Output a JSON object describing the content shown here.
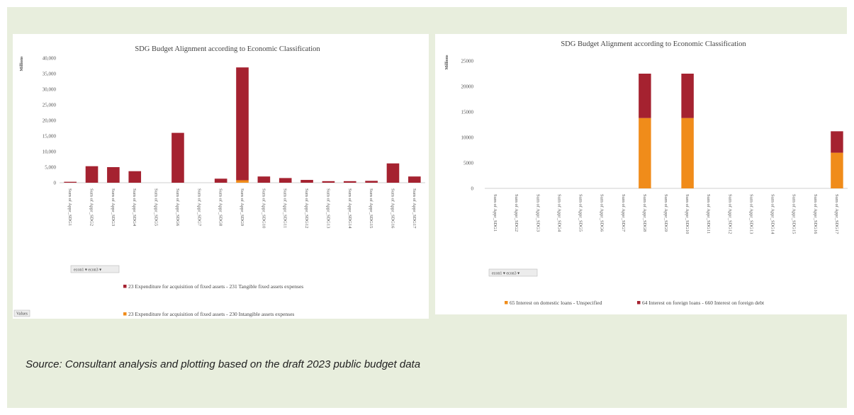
{
  "source_note": "Source: Consultant analysis and plotting based on the draft 2023 public budget data",
  "colors": {
    "dark_red": "#a52230",
    "orange": "#f08c1a",
    "frame_bg": "#e8eedd"
  },
  "chart_data": [
    {
      "type": "bar",
      "stacked": true,
      "title": "SDG Budget Alignment according to Economic Classification",
      "ylabel": "Millions",
      "ylim": [
        0,
        40000
      ],
      "yticks": [
        "0",
        "5,000",
        "10,000",
        "15,000",
        "20,000",
        "25,000",
        "30,000",
        "35,000",
        "40,000"
      ],
      "categories": [
        "Sum of Appr_SDG1",
        "Sum of Appr_SDG2",
        "Sum of Appr_SDG3",
        "Sum of Appr_SDG4",
        "Sum of Appr_SDG5",
        "Sum of Appr_SDG6",
        "Sum of Appr_SDG7",
        "Sum of Appr_SDG8",
        "Sum of Appr_SDG9",
        "Sum of Appr_SDG10",
        "Sum of Appr_SDG11",
        "Sum of Appr_SDG12",
        "Sum of Appr_SDG13",
        "Sum of Appr_SDG14",
        "Sum of Appr_SDG15",
        "Sum of Appr_SDG16",
        "Sum of Appr_SDG17"
      ],
      "series": [
        {
          "name": "23 Expenditure for acquisition of fixed assets - 230 Intangible assets expenses",
          "color": "#f08c1a",
          "values": [
            0,
            0,
            0,
            0,
            0,
            0,
            0,
            0,
            800,
            0,
            0,
            0,
            0,
            0,
            0,
            0,
            0
          ]
        },
        {
          "name": "23 Expenditure for acquisition of fixed assets - 231 Tangible fixed assets expenses",
          "color": "#a52230",
          "values": [
            300,
            5300,
            5000,
            3700,
            0,
            16000,
            0,
            1300,
            36200,
            2000,
            1500,
            900,
            500,
            500,
            600,
            6200,
            2000
          ]
        }
      ],
      "filter_label": "econ1 ▾ econ3 ▾",
      "values_label": "Values",
      "grid": false,
      "legend": "bottom"
    },
    {
      "type": "bar",
      "stacked": true,
      "title": "SDG Budget Alignment according to Economic Classification",
      "ylabel": "Millions",
      "ylim": [
        0,
        25000
      ],
      "yticks": [
        "0",
        "5000",
        "10000",
        "15000",
        "20000",
        "25000"
      ],
      "categories": [
        "Sum of Appr_SDG1",
        "Sum of Appr_SDG2",
        "Sum of Appr_SDG3",
        "Sum of Appr_SDG4",
        "Sum of Appr_SDG5",
        "Sum of Appr_SDG6",
        "Sum of Appr_SDG7",
        "Sum of Appr_SDG8",
        "Sum of Appr_SDG9",
        "Sum of Appr_SDG10",
        "Sum of Appr_SDG11",
        "Sum of Appr_SDG12",
        "Sum of Appr_SDG13",
        "Sum of Appr_SDG14",
        "Sum of Appr_SDG15",
        "Sum of Appr_SDG16",
        "Sum of Appr_SDG17"
      ],
      "series": [
        {
          "name": "65 Interest on domestic loans - Unspecified",
          "color": "#f08c1a",
          "values": [
            0,
            0,
            0,
            0,
            0,
            0,
            0,
            13800,
            0,
            13800,
            0,
            0,
            0,
            0,
            0,
            0,
            7000
          ]
        },
        {
          "name": "64 Interest on foreign loans - 660 Interest on foreign debt",
          "color": "#a52230",
          "values": [
            0,
            0,
            0,
            0,
            0,
            0,
            0,
            8700,
            0,
            8700,
            0,
            0,
            0,
            0,
            0,
            0,
            4200
          ]
        }
      ],
      "filter_label": "econ1 ▾ econ3 ▾",
      "grid": false,
      "legend": "bottom"
    }
  ]
}
